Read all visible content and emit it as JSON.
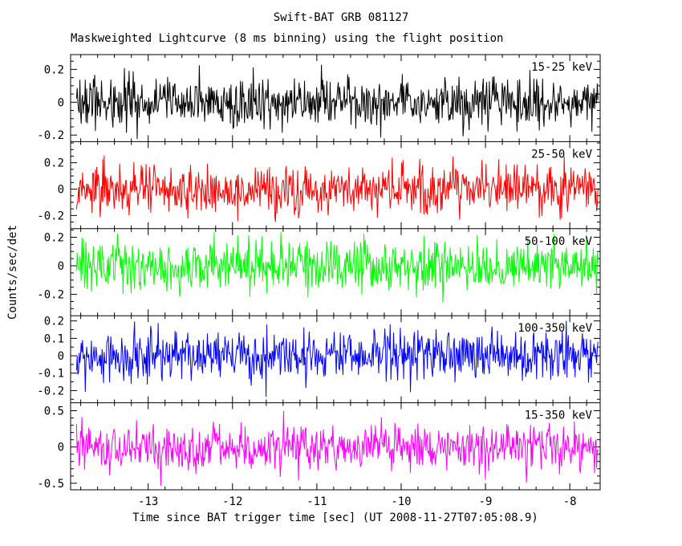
{
  "figure": {
    "title": "Swift-BAT GRB 081127",
    "subtitle": "Maskweighted Lightcurve (8 ms binning) using the flight position",
    "xlabel": "Time since BAT trigger time [sec] (UT 2008-11-27T07:05:08.9)",
    "ylabel": "Counts/sec/det"
  },
  "chart_data": {
    "type": "line",
    "style": "noise-lightcurve",
    "grid": false,
    "legend_position": "inside-top-right-per-panel",
    "x_axis_range": [
      -13.92,
      -7.64
    ],
    "x_data_range": [
      -13.85,
      -7.67
    ],
    "x_ticks": [
      -13,
      -12,
      -11,
      -10,
      -9,
      -8
    ],
    "x_minor_step": 0.2,
    "bin_seconds": 0.008,
    "noise_seed": 20081127,
    "panels": [
      {
        "band": "15-25 keV",
        "color": "#000000",
        "ylim": [
          -0.24,
          0.29
        ],
        "yticks": [
          0.2,
          0,
          -0.2
        ],
        "y_minor_step": 0.05,
        "sigma": 0.075
      },
      {
        "band": "25-50 keV",
        "color": "#ff0000",
        "ylim": [
          -0.3,
          0.36
        ],
        "yticks": [
          0.2,
          0,
          -0.2
        ],
        "y_minor_step": 0.05,
        "sigma": 0.09
      },
      {
        "band": "50-100 keV",
        "color": "#00ff00",
        "ylim": [
          -0.35,
          0.26
        ],
        "yticks": [
          0.2,
          0,
          -0.2
        ],
        "y_minor_step": 0.05,
        "sigma": 0.09
      },
      {
        "band": "100-350 keV",
        "color": "#0000ff",
        "ylim": [
          -0.27,
          0.23
        ],
        "yticks": [
          0.2,
          0.1,
          0,
          -0.1,
          -0.2
        ],
        "y_minor_step": 0.05,
        "sigma": 0.07
      },
      {
        "band": "15-350 keV",
        "color": "#ff00ff",
        "ylim": [
          -0.59,
          0.61
        ],
        "yticks": [
          0.5,
          0,
          -0.5
        ],
        "y_minor_step": 0.1,
        "sigma": 0.17
      }
    ]
  }
}
